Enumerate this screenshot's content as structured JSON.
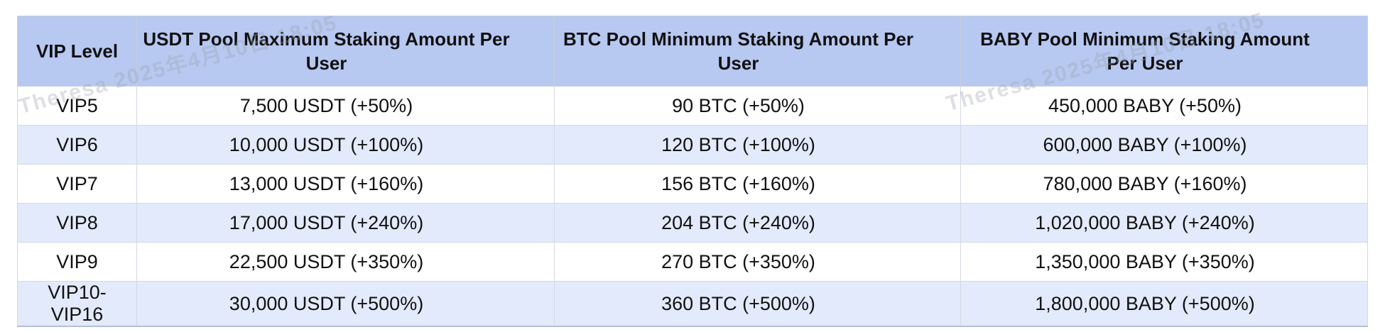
{
  "watermark": {
    "text": "Theresa 2025年4月10日 18:05"
  },
  "colors": {
    "header_bg": "#b7c8f1",
    "stripe_bg": "#e3eafb",
    "row_bg": "#ffffff",
    "border": "#c9cfdb",
    "text": "#111111"
  },
  "table": {
    "columns": [
      {
        "label": "VIP Level"
      },
      {
        "label": "USDT Pool Maximum Staking Amount Per User"
      },
      {
        "label": "BTC Pool Minimum Staking Amount Per User"
      },
      {
        "label": "BABY Pool Minimum Staking Amount Per User"
      }
    ],
    "rows": [
      [
        "VIP5",
        "7,500 USDT (+50%)",
        "90 BTC (+50%)",
        "450,000 BABY (+50%)"
      ],
      [
        "VIP6",
        "10,000 USDT (+100%)",
        "120 BTC (+100%)",
        "600,000 BABY (+100%)"
      ],
      [
        "VIP7",
        "13,000 USDT (+160%)",
        "156 BTC (+160%)",
        "780,000 BABY (+160%)"
      ],
      [
        "VIP8",
        "17,000 USDT (+240%)",
        "204 BTC (+240%)",
        "1,020,000 BABY (+240%)"
      ],
      [
        "VIP9",
        "22,500 USDT (+350%)",
        "270 BTC (+350%)",
        "1,350,000 BABY (+350%)"
      ],
      [
        "VIP10-VIP16",
        "30,000 USDT (+500%)",
        "360 BTC (+500%)",
        "1,800,000 BABY (+500%)"
      ]
    ]
  }
}
